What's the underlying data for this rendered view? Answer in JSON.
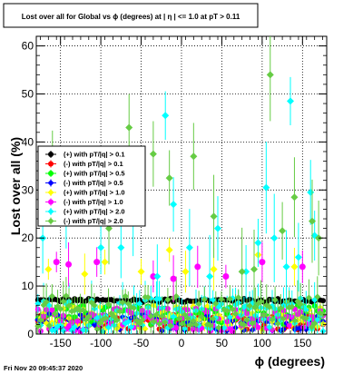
{
  "chart_data": {
    "type": "scatter",
    "title": "Lost over all for Global vs ϕ (degrees) at | η | <= 1.0 at pT > 0.11",
    "xlabel": "ϕ (degrees)",
    "ylabel": "Lost over all (%)",
    "xlim": [
      -180,
      180
    ],
    "ylim": [
      0,
      62
    ],
    "x_ticks": [
      -150,
      -100,
      -50,
      0,
      50,
      100,
      150
    ],
    "y_ticks": [
      0,
      10,
      20,
      30,
      40,
      50,
      60
    ],
    "grid": true,
    "legend_position": "center-left",
    "timestamp": "Fri Nov 20 09:45:37 2020",
    "series": [
      {
        "name": "(+) with pT/|q| > 0.1",
        "color": "#000000",
        "base": 7.0,
        "spread": 0.4,
        "err": 0.3,
        "points": []
      },
      {
        "name": "(-) with pT/|q| > 0.1",
        "color": "#ff0000",
        "base": 2.5,
        "spread": 1.6,
        "err": 0.6,
        "points": []
      },
      {
        "name": "(+) with pT/|q| > 0.5",
        "color": "#00ff00",
        "base": 4.0,
        "spread": 2.0,
        "err": 0.8,
        "points": []
      },
      {
        "name": "(-) with pT/|q| > 0.5",
        "color": "#0000ff",
        "base": 2.5,
        "spread": 1.8,
        "err": 0.7,
        "points": []
      },
      {
        "name": "(+) with pT/|q| > 1.0",
        "color": "#ffff00",
        "base": 3.5,
        "spread": 2.5,
        "err": 1.0,
        "points": [
          [
            -165,
            13.5
          ],
          [
            -120,
            12.5
          ],
          [
            -95,
            15
          ],
          [
            -50,
            13
          ],
          [
            -15,
            17.5
          ],
          [
            5,
            13
          ],
          [
            40,
            13.5
          ],
          [
            95,
            16.5
          ],
          [
            140,
            14
          ]
        ]
      },
      {
        "name": "(-) with pT/|q| > 1.0",
        "color": "#ff00ff",
        "base": 3.0,
        "spread": 2.5,
        "err": 1.0,
        "points": [
          [
            -155,
            15
          ],
          [
            -140,
            14.5
          ],
          [
            -105,
            15
          ],
          [
            -35,
            12
          ],
          [
            -10,
            11.5
          ],
          [
            20,
            14
          ],
          [
            55,
            12
          ],
          [
            100,
            15
          ],
          [
            150,
            14
          ]
        ]
      },
      {
        "name": "(+) with pT/|q| > 2.0",
        "color": "#00ffff",
        "base": 4.0,
        "spread": 3.5,
        "err": 3.0,
        "points": [
          [
            -172,
            20
          ],
          [
            -143,
            27
          ],
          [
            -118,
            30
          ],
          [
            -100,
            18
          ],
          [
            -75,
            18
          ],
          [
            -60,
            26
          ],
          [
            -30,
            12
          ],
          [
            -20,
            45.5
          ],
          [
            -10,
            27
          ],
          [
            10,
            18
          ],
          [
            35,
            12
          ],
          [
            45,
            22
          ],
          [
            80,
            13
          ],
          [
            95,
            19
          ],
          [
            105,
            30.5
          ],
          [
            115,
            20
          ],
          [
            130,
            14
          ],
          [
            135,
            48.5
          ],
          [
            145,
            16
          ],
          [
            160,
            29.5
          ],
          [
            165,
            20.5
          ]
        ]
      },
      {
        "name": "(-) with pT/|q| > 2.0",
        "color": "#66cc44",
        "base": 4.5,
        "spread": 3.5,
        "err": 3.0,
        "points": [
          [
            -160,
            33
          ],
          [
            -125,
            34
          ],
          [
            -90,
            22
          ],
          [
            -65,
            43
          ],
          [
            -35,
            37.5
          ],
          [
            -15,
            32.5
          ],
          [
            15,
            37
          ],
          [
            40,
            24.5
          ],
          [
            75,
            13
          ],
          [
            90,
            13.5
          ],
          [
            110,
            54
          ],
          [
            125,
            21.5
          ],
          [
            140,
            28.5
          ],
          [
            162,
            23.5
          ],
          [
            170,
            20
          ]
        ]
      }
    ]
  }
}
